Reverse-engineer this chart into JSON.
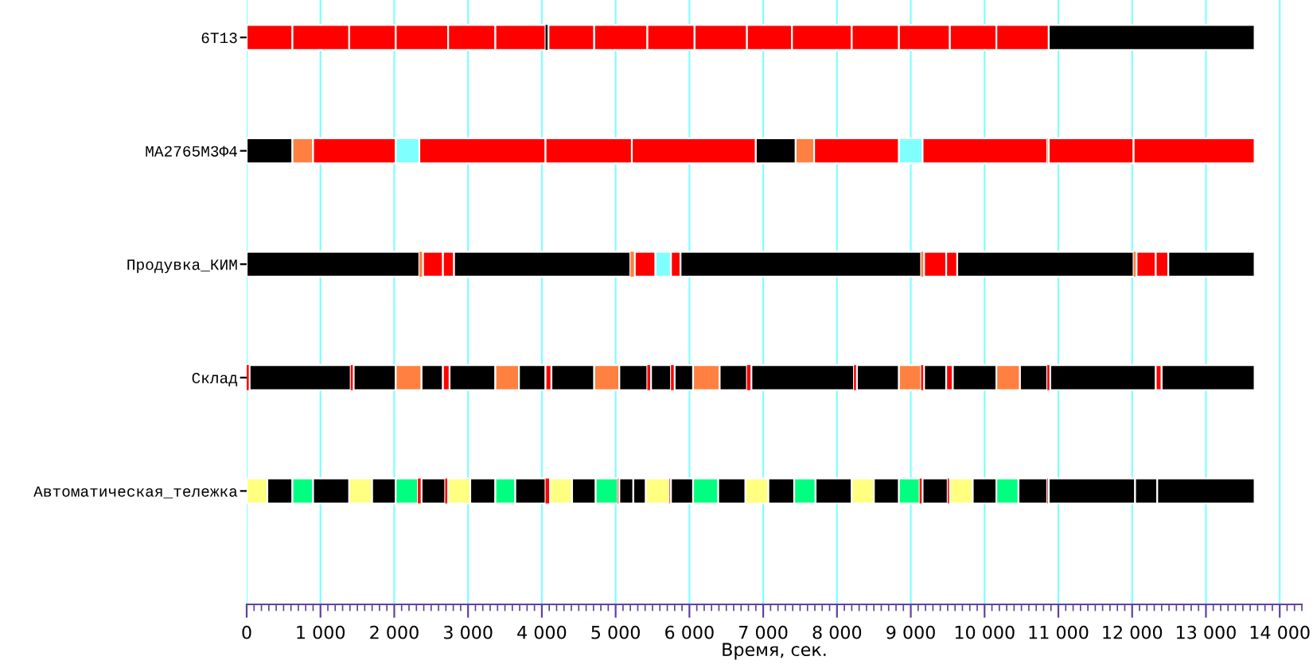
{
  "chart_data": {
    "type": "bar",
    "orientation": "horizontal",
    "stacked": true,
    "categories": [
      "6T13",
      "MA2765M3Ф4",
      "Продувка_КИМ",
      "Склад",
      "Автоматическая_тележка"
    ],
    "xlabel": "Время, сек.",
    "xlim": [
      0,
      14300
    ],
    "xticks": [
      0,
      {
        "value": 1000,
        "label": "1 000"
      },
      {
        "value": 2000,
        "label": "2 000"
      },
      {
        "value": 3000,
        "label": "3 000"
      },
      {
        "value": 4000,
        "label": "4 000"
      },
      {
        "value": 5000,
        "label": "5 000"
      },
      {
        "value": 6000,
        "label": "6 000"
      },
      {
        "value": 7000,
        "label": "7 000"
      },
      {
        "value": 8000,
        "label": "8 000"
      },
      {
        "value": 9000,
        "label": "9 000"
      },
      {
        "value": 10000,
        "label": "10 000"
      },
      {
        "value": 11000,
        "label": "11 000"
      },
      {
        "value": 12000,
        "label": "12 000"
      },
      {
        "value": 13000,
        "label": "13 000"
      },
      {
        "value": 14000,
        "label": "14 000"
      }
    ],
    "grid": "x",
    "series": [
      {
        "values": [
          620,
          620,
          2340,
          40,
          280
        ],
        "colors": [
          "#ff0000",
          "#000000",
          "#000000",
          "#ff0000",
          "#ffff80"
        ]
      },
      {
        "values": [
          770,
          280,
          50,
          1370,
          340
        ],
        "colors": [
          "#ff0000",
          "#ff8040",
          "#ff8040",
          "#000000",
          "#000000"
        ]
      },
      {
        "values": [
          630,
          1120,
          270,
          40,
          280
        ],
        "colors": [
          "#ff0000",
          "#ff0000",
          "#ff0000",
          "#ff0000",
          "#00ff80"
        ]
      },
      {
        "values": [
          710,
          320,
          150,
          570,
          490
        ],
        "colors": [
          "#ff0000",
          "#80ffff",
          "#ff0000",
          "#000000",
          "#000000"
        ]
      },
      {
        "values": [
          640,
          1710,
          2390,
          350,
          310
        ],
        "colors": [
          "#ff0000",
          "#ff0000",
          "#000000",
          "#ff8040",
          "#ffff80"
        ]
      },
      {
        "values": [
          680,
          1170,
          60,
          290,
          320
        ],
        "colors": [
          "#ff0000",
          "#ff0000",
          "#ff8040",
          "#000000",
          "#000000"
        ]
      },
      {
        "values": [
          40,
          1680,
          280,
          90,
          300
        ],
        "colors": [
          "#000000",
          "#ff0000",
          "#ff0000",
          "#ff0000",
          "#00ff80"
        ]
      },
      {
        "values": [
          620,
          540,
          210,
          620,
          50
        ],
        "colors": [
          "#ff0000",
          "#000000",
          "#80ffff",
          "#000000",
          "#ff0000"
        ]
      },
      {
        "values": [
          720,
          250,
          130,
          320,
          320
        ],
        "colors": [
          "#ff0000",
          "#ff8040",
          "#ff0000",
          "#ff8040",
          "#000000"
        ]
      },
      {
        "values": [
          640,
          1150,
          3260,
          360,
          40
        ],
        "colors": [
          "#ff0000",
          "#ff0000",
          "#000000",
          "#000000",
          "#ff0000"
        ]
      },
      {
        "values": [
          710,
          320,
          40,
          80,
          300
        ],
        "colors": [
          "#ff0000",
          "#80ffff",
          "#ff8040",
          "#ff0000",
          "#ffff80"
        ]
      },
      {
        "values": [
          610,
          1690,
          300,
          580,
          340
        ],
        "colors": [
          "#ff0000",
          "#ff0000",
          "#ff0000",
          "#000000",
          "#000000"
        ]
      },
      {
        "values": [
          810,
          20,
          150,
          340,
          270
        ],
        "colors": [
          "#ff0000",
          "#ff8040",
          "#ff0000",
          "#ff8040",
          "#00ff80"
        ]
      },
      {
        "values": [
          640,
          1150,
          2390,
          380,
          410
        ],
        "colors": [
          "#ff0000",
          "#ff0000",
          "#000000",
          "#000000",
          "#000000"
        ]
      },
      {
        "values": [
          690,
          1640,
          40,
          50,
          60
        ],
        "colors": [
          "#ff0000",
          "#ff0000",
          "#ff8040",
          "#ff0000",
          "#ff0000"
        ]
      },
      {
        "values": [
          630,
          null,
          260,
          270,
          300
        ],
        "colors": [
          "#ff0000",
          null,
          "#ff0000",
          "#000000",
          "#ffff80"
        ]
      },
      {
        "values": [
          710,
          null,
          170,
          50,
          320
        ],
        "colors": [
          "#ff0000",
          null,
          "#ff0000",
          "#ff0000",
          "#000000"
        ]
      },
      {
        "values": [
          2790,
          null,
          1170,
          250,
          300
        ],
        "colors": [
          "#000000",
          null,
          "#000000",
          "#000000",
          "#00ff80"
        ]
      },
      {
        "values": [
          null,
          null,
          null,
          360,
          20
        ],
        "colors": [
          null,
          null,
          null,
          "#ff8040",
          "#ff0000"
        ]
      },
      {
        "values": [
          null,
          null,
          null,
          370,
          190
        ],
        "colors": [
          null,
          null,
          null,
          "#000000",
          "#000000"
        ]
      },
      {
        "values": [
          null,
          null,
          null,
          60,
          170
        ],
        "colors": [
          null,
          null,
          null,
          "#ff0000",
          "#000000"
        ]
      },
      {
        "values": [
          null,
          null,
          null,
          1390,
          320
        ],
        "colors": [
          null,
          null,
          null,
          "#000000",
          "#ffff80"
        ]
      },
      {
        "values": [
          null,
          null,
          null,
          40,
          20
        ],
        "colors": [
          null,
          null,
          null,
          "#ff0000",
          "#ff0000"
        ]
      },
      {
        "values": [
          null,
          null,
          null,
          570,
          300
        ],
        "colors": [
          null,
          null,
          null,
          "#000000",
          "#000000"
        ]
      },
      {
        "values": [
          null,
          null,
          null,
          300,
          340
        ],
        "colors": [
          null,
          null,
          null,
          "#ff8040",
          "#00ff80"
        ]
      },
      {
        "values": [
          null,
          null,
          null,
          40,
          370
        ],
        "colors": [
          null,
          null,
          null,
          "#ff0000",
          "#000000"
        ]
      },
      {
        "values": [
          null,
          null,
          null,
          300,
          310
        ],
        "colors": [
          null,
          null,
          null,
          "#000000",
          "#ffff80"
        ]
      },
      {
        "values": [
          null,
          null,
          null,
          90,
          350
        ],
        "colors": [
          null,
          null,
          null,
          "#ff0000",
          "#000000"
        ]
      },
      {
        "values": [
          null,
          null,
          null,
          590,
          290
        ],
        "colors": [
          null,
          null,
          null,
          "#000000",
          "#00ff80"
        ]
      },
      {
        "values": [
          null,
          null,
          null,
          320,
          490
        ],
        "colors": [
          null,
          null,
          null,
          "#ff8040",
          "#000000"
        ]
      },
      {
        "values": [
          null,
          null,
          null,
          370,
          300
        ],
        "colors": [
          null,
          null,
          null,
          "#000000",
          "#ffff80"
        ]
      },
      {
        "values": [
          null,
          null,
          null,
          40,
          340
        ],
        "colors": [
          null,
          null,
          null,
          "#ff0000",
          "#000000"
        ]
      },
      {
        "values": [
          null,
          null,
          null,
          1430,
          280
        ],
        "colors": [
          null,
          null,
          null,
          "#000000",
          "#00ff80"
        ]
      },
      {
        "values": [
          null,
          null,
          null,
          80,
          40
        ],
        "colors": [
          null,
          null,
          null,
          "#ff0000",
          "#ff0000"
        ]
      },
      {
        "values": [
          null,
          null,
          null,
          1260,
          340
        ],
        "colors": [
          null,
          null,
          null,
          "#000000",
          "#000000"
        ]
      },
      {
        "values": [
          null,
          null,
          null,
          null,
          30
        ],
        "colors": [
          null,
          null,
          null,
          null,
          "#ff0000"
        ]
      },
      {
        "values": [
          null,
          null,
          null,
          null,
          310
        ],
        "colors": [
          null,
          null,
          null,
          null,
          "#ffff80"
        ]
      },
      {
        "values": [
          null,
          null,
          null,
          null,
          320
        ],
        "colors": [
          null,
          null,
          null,
          null,
          "#000000"
        ]
      },
      {
        "values": [
          null,
          null,
          null,
          null,
          300
        ],
        "colors": [
          null,
          null,
          null,
          null,
          "#00ff80"
        ]
      },
      {
        "values": [
          null,
          null,
          null,
          null,
          390
        ],
        "colors": [
          null,
          null,
          null,
          null,
          "#000000"
        ]
      },
      {
        "values": [
          null,
          null,
          null,
          null,
          20
        ],
        "colors": [
          null,
          null,
          null,
          null,
          "#ff0000"
        ]
      },
      {
        "values": [
          null,
          null,
          null,
          null,
          1170
        ],
        "colors": [
          null,
          null,
          null,
          null,
          "#000000"
        ]
      },
      {
        "values": [
          null,
          null,
          null,
          null,
          300
        ],
        "colors": [
          null,
          null,
          null,
          null,
          "#000000"
        ]
      },
      {
        "values": [
          null,
          null,
          null,
          null,
          1320
        ],
        "colors": [
          null,
          null,
          null,
          null,
          "#000000"
        ]
      }
    ]
  }
}
